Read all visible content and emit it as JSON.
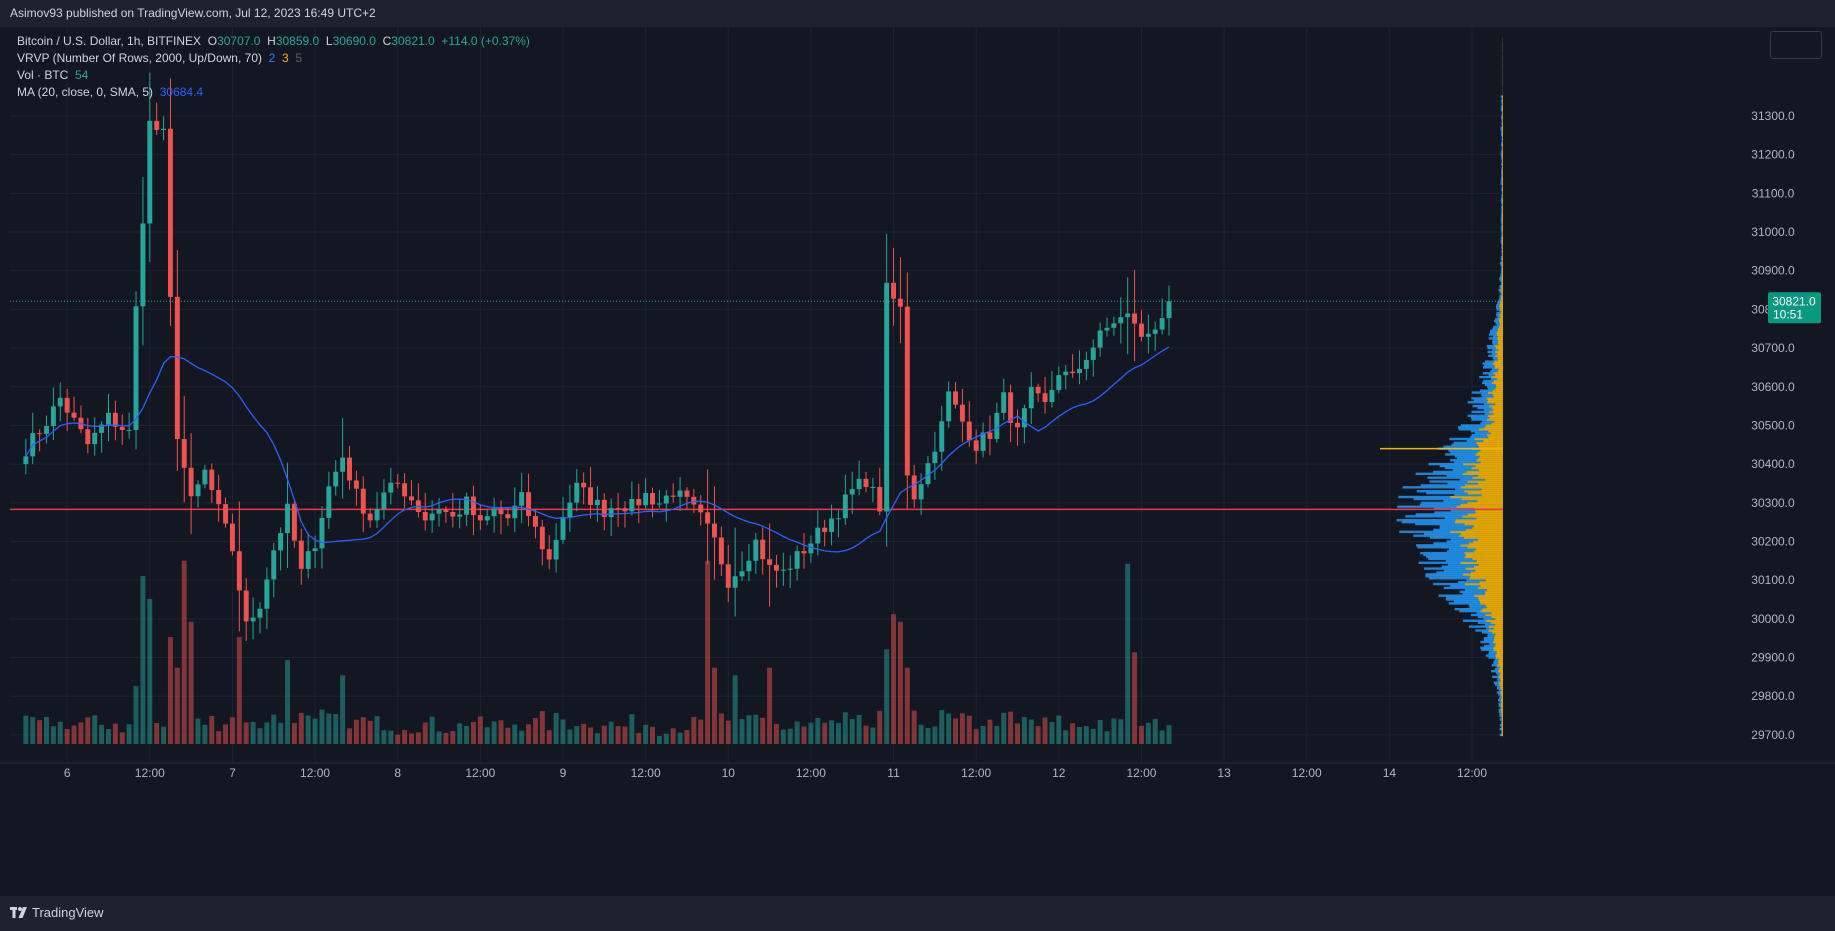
{
  "header": {
    "published": "Asimov93 published on TradingView.com, Jul 12, 2023 16:49 UTC+2"
  },
  "legend": {
    "symbol": "Bitcoin / U.S. Dollar, 1h, BITFINEX",
    "o_label": "O",
    "o_value": "30707.0",
    "h_label": "H",
    "h_value": "30859.0",
    "l_label": "L",
    "l_value": "30690.0",
    "c_label": "C",
    "c_value": "30821.0",
    "change": "+114.0 (+0.37%)",
    "vrvp_label": "VRVP (Number Of Rows, 2000, Up/Down, 70)",
    "vrvp_v1": "2",
    "vrvp_v2": "3",
    "vrvp_v3": "5",
    "vol_label": "Vol · BTC",
    "vol_value": "54",
    "ma_label": "MA (20, close, 0, SMA, 5)",
    "ma_value": "30684.4"
  },
  "footer": {
    "brand": "TradingView"
  },
  "colors": {
    "background": "#131722",
    "up": "#26a69a",
    "down": "#ef5350",
    "ma": "#2962ff",
    "level": "#f23645",
    "vp_up": "#2196f3",
    "vp_down": "#f7b500"
  },
  "chart_data": {
    "type": "candlestick",
    "title": "Bitcoin / U.S. Dollar, 1h, BITFINEX",
    "ylim": [
      29630,
      31530
    ],
    "y_ticks": [
      31300,
      31200,
      31100,
      31000,
      30900,
      30800,
      30700,
      30600,
      30500,
      30400,
      30300,
      30200,
      30100,
      30000,
      29900,
      29800,
      29700
    ],
    "y_tick_labels": [
      "31300.0",
      "31200.0",
      "31100.0",
      "31000.0",
      "30900.0",
      "30800.0",
      "30700.0",
      "30600.0",
      "30500.0",
      "30400.0",
      "30300.0",
      "30200.0",
      "30100.0",
      "30000.0",
      "29900.0",
      "29800.0",
      "29700.0"
    ],
    "x_ticks": [
      {
        "label": "6",
        "hours": 6
      },
      {
        "label": "12:00",
        "hours": 18
      },
      {
        "label": "7",
        "hours": 30
      },
      {
        "label": "12:00",
        "hours": 42
      },
      {
        "label": "8",
        "hours": 54
      },
      {
        "label": "12:00",
        "hours": 66
      },
      {
        "label": "9",
        "hours": 78
      },
      {
        "label": "12:00",
        "hours": 90
      },
      {
        "label": "10",
        "hours": 102
      },
      {
        "label": "12:00",
        "hours": 114
      },
      {
        "label": "11",
        "hours": 126
      },
      {
        "label": "12:00",
        "hours": 138
      },
      {
        "label": "12",
        "hours": 150
      },
      {
        "label": "12:00",
        "hours": 162
      },
      {
        "label": "13",
        "hours": 174
      },
      {
        "label": "12:00",
        "hours": 186
      },
      {
        "label": "14",
        "hours": 198
      },
      {
        "label": "12:00",
        "hours": 210
      }
    ],
    "hour_range": [
      -2.3,
      214.5
    ],
    "last_price": {
      "value": 30821.0,
      "label": "30821.0",
      "countdown": "10:51"
    },
    "horizontal_level": 30283,
    "seed": 7,
    "anchors": [
      [
        0,
        30440
      ],
      [
        3,
        30510
      ],
      [
        5,
        30570
      ],
      [
        9,
        30450
      ],
      [
        12,
        30520
      ],
      [
        15,
        30480
      ],
      [
        16,
        30800
      ],
      [
        18,
        31280
      ],
      [
        20,
        31250
      ],
      [
        21,
        30820
      ],
      [
        22,
        30480
      ],
      [
        24,
        30300
      ],
      [
        26,
        30380
      ],
      [
        28,
        30280
      ],
      [
        30,
        30180
      ],
      [
        32,
        29980
      ],
      [
        34,
        30040
      ],
      [
        36,
        30180
      ],
      [
        38,
        30280
      ],
      [
        40,
        30120
      ],
      [
        42,
        30200
      ],
      [
        44,
        30340
      ],
      [
        46,
        30420
      ],
      [
        48,
        30320
      ],
      [
        50,
        30260
      ],
      [
        52,
        30320
      ],
      [
        54,
        30350
      ],
      [
        56,
        30310
      ],
      [
        58,
        30260
      ],
      [
        60,
        30290
      ],
      [
        62,
        30260
      ],
      [
        64,
        30300
      ],
      [
        66,
        30240
      ],
      [
        68,
        30280
      ],
      [
        70,
        30260
      ],
      [
        72,
        30310
      ],
      [
        74,
        30230
      ],
      [
        76,
        30150
      ],
      [
        78,
        30270
      ],
      [
        80,
        30340
      ],
      [
        82,
        30310
      ],
      [
        84,
        30280
      ],
      [
        86,
        30300
      ],
      [
        88,
        30290
      ],
      [
        90,
        30320
      ],
      [
        92,
        30300
      ],
      [
        94,
        30330
      ],
      [
        96,
        30300
      ],
      [
        98,
        30260
      ],
      [
        100,
        30200
      ],
      [
        102,
        30100
      ],
      [
        104,
        30140
      ],
      [
        106,
        30200
      ],
      [
        108,
        30130
      ],
      [
        110,
        30120
      ],
      [
        112,
        30160
      ],
      [
        114,
        30200
      ],
      [
        116,
        30240
      ],
      [
        118,
        30280
      ],
      [
        120,
        30330
      ],
      [
        122,
        30360
      ],
      [
        124,
        30290
      ],
      [
        125,
        30850
      ],
      [
        127,
        30800
      ],
      [
        128,
        30380
      ],
      [
        129,
        30320
      ],
      [
        131,
        30400
      ],
      [
        133,
        30500
      ],
      [
        134,
        30580
      ],
      [
        136,
        30510
      ],
      [
        138,
        30450
      ],
      [
        140,
        30480
      ],
      [
        142,
        30570
      ],
      [
        144,
        30480
      ],
      [
        146,
        30580
      ],
      [
        148,
        30550
      ],
      [
        150,
        30640
      ],
      [
        152,
        30620
      ],
      [
        154,
        30680
      ],
      [
        156,
        30730
      ],
      [
        158,
        30770
      ],
      [
        160,
        30780
      ],
      [
        161,
        30770
      ],
      [
        162,
        30720
      ],
      [
        164,
        30760
      ],
      [
        166,
        30810
      ]
    ],
    "volume_spikes": {
      "17": 1.1,
      "18": 0.95,
      "21": 0.7,
      "22": 0.5,
      "23": 1.2,
      "24": 0.8,
      "31": 0.7,
      "38": 0.55,
      "46": 0.45,
      "99": 1.2,
      "100": 0.5,
      "103": 0.45,
      "108": 0.5,
      "125": 0.62,
      "126": 0.85,
      "127": 0.8,
      "128": 0.5,
      "160": 1.18,
      "161": 0.6
    }
  }
}
